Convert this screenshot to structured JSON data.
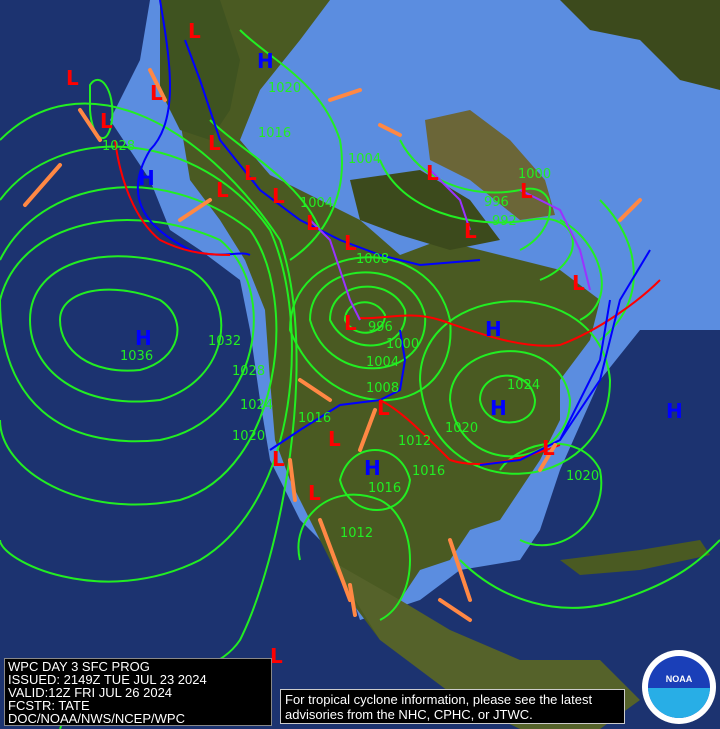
{
  "info_box": {
    "line1": "WPC DAY 3 SFC PROG",
    "line2": "ISSUED: 2149Z TUE JUL 23 2024",
    "line3": "VALID:12Z FRI JUL 26 2024",
    "line4": "FCSTR: TATE",
    "line5": "DOC/NOAA/NWS/NCEP/WPC"
  },
  "tropical_note": {
    "line1": "For tropical cyclone information, please see the latest",
    "line2": "advisories from the NHC, CPHC, or JTWC."
  },
  "logo": {
    "text": "NOAA"
  },
  "isobar_labels": [
    "1028",
    "1020",
    "1016",
    "1004",
    "1004",
    "1000",
    "996",
    "992",
    "1008",
    "1032",
    "1036",
    "1028",
    "1024",
    "1020",
    "1016",
    "996",
    "1000",
    "1004",
    "1008",
    "1012",
    "1016",
    "1016",
    "1012",
    "1020",
    "1024",
    "1020"
  ],
  "high_centers": [
    "H",
    "H",
    "H",
    "H",
    "H",
    "H",
    "H"
  ],
  "low_centers": [
    "L",
    "L",
    "L",
    "L",
    "L",
    "L",
    "L",
    "L",
    "L",
    "L",
    "L",
    "L",
    "L",
    "L",
    "L",
    "L",
    "L",
    "L",
    "L",
    "L",
    "L"
  ],
  "colors": {
    "ocean": "#1c3370",
    "shallow_water": "#5b8de0",
    "land": "#4a5a22",
    "isobar": "#22ee22",
    "high": "#0000ff",
    "low": "#ff0000",
    "cold_front": "#0000ff",
    "warm_front": "#ff0000",
    "occluded_front": "#9933ff",
    "trough": "#ff8844"
  }
}
